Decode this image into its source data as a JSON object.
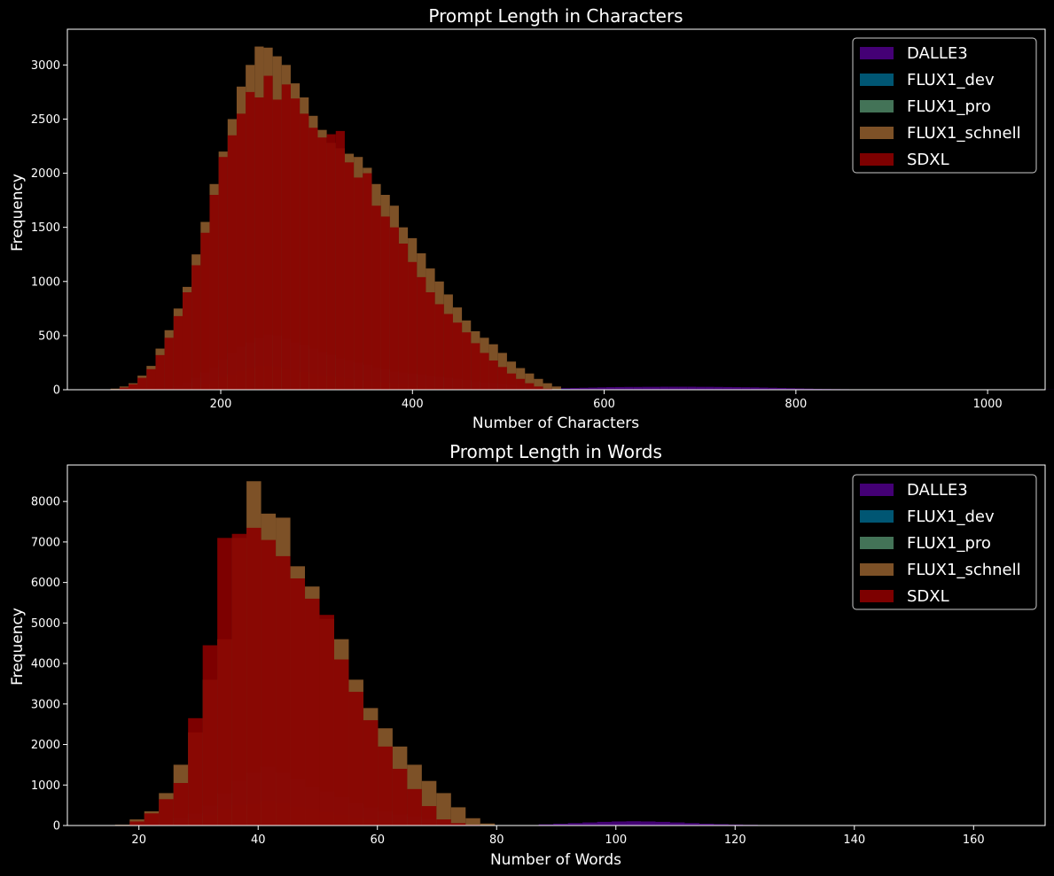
{
  "figure": {
    "background": "#000000"
  },
  "chart_data": [
    {
      "type": "bar",
      "subtype": "histogram",
      "title": "Prompt Length in Characters",
      "xlabel": "Number of Characters",
      "ylabel": "Frequency",
      "xlim": [
        40,
        1060
      ],
      "ylim": [
        0,
        3330
      ],
      "xticks": [
        200,
        400,
        600,
        800,
        1000
      ],
      "yticks": [
        0,
        500,
        1000,
        1500,
        2000,
        2500,
        3000
      ],
      "grid": false,
      "legend_position": "top-right",
      "bin_edges_start": 85,
      "bin_width": 9.4,
      "series": [
        {
          "name": "DALLE3",
          "color": "#4b0082",
          "opacity": 0.9,
          "start_bin": 47,
          "values": [
            8,
            10,
            12,
            14,
            16,
            18,
            20,
            22,
            24,
            25,
            26,
            26,
            27,
            27,
            28,
            28,
            28,
            28,
            27,
            27,
            26,
            25,
            24,
            23,
            22,
            20,
            18,
            16,
            14,
            12,
            10,
            8,
            7,
            6,
            5,
            4,
            3,
            3,
            2,
            2,
            1,
            1,
            1,
            1,
            1,
            1,
            1,
            1,
            1,
            1,
            1,
            1,
            1,
            1,
            1,
            1,
            1,
            1,
            1,
            1,
            1,
            1,
            1,
            1,
            1,
            1,
            1,
            1,
            1,
            1,
            1,
            1,
            1,
            1,
            1,
            1,
            1,
            1,
            1,
            1
          ]
        },
        {
          "name": "FLUX1_dev",
          "color": "#005f80",
          "opacity": 0.9,
          "start_bin": 4,
          "values": [
            5,
            10,
            20,
            40,
            70,
            110,
            160,
            210,
            280,
            340,
            400,
            440,
            480,
            510,
            500,
            470,
            440,
            410,
            380,
            350,
            320,
            290,
            270,
            250,
            230,
            210,
            190,
            170,
            160,
            150,
            140,
            130,
            120,
            110,
            100,
            90,
            80,
            70,
            60,
            50,
            42,
            34,
            26,
            20,
            14,
            10,
            6,
            4
          ]
        },
        {
          "name": "FLUX1_pro",
          "color": "#4a8060",
          "opacity": 0.9,
          "start_bin": 6,
          "values": [
            4,
            8,
            16,
            30,
            50,
            80,
            110,
            140,
            170,
            200,
            215,
            220,
            210,
            190,
            175,
            160,
            145,
            130,
            120,
            110,
            100,
            90,
            80,
            72,
            64,
            56,
            48,
            40,
            32,
            25,
            18,
            12,
            8,
            5,
            3
          ]
        },
        {
          "name": "FLUX1_schnell",
          "color": "#8b5a2b",
          "opacity": 0.9,
          "start_bin": 0,
          "values": [
            10,
            30,
            60,
            130,
            220,
            380,
            550,
            750,
            950,
            1250,
            1550,
            1900,
            2200,
            2500,
            2800,
            3000,
            3170,
            3160,
            3080,
            3000,
            2830,
            2700,
            2530,
            2400,
            2280,
            2230,
            2180,
            2150,
            2050,
            1900,
            1800,
            1700,
            1500,
            1400,
            1260,
            1120,
            1000,
            880,
            760,
            640,
            540,
            480,
            420,
            340,
            260,
            200,
            150,
            100,
            60,
            30
          ]
        },
        {
          "name": "SDXL",
          "color": "#8b0000",
          "opacity": 0.9,
          "start_bin": 0,
          "values": [
            5,
            20,
            50,
            110,
            190,
            320,
            480,
            680,
            900,
            1150,
            1450,
            1800,
            2150,
            2350,
            2550,
            2750,
            2700,
            2900,
            2680,
            2820,
            2690,
            2550,
            2420,
            2330,
            2360,
            2390,
            2100,
            1960,
            2000,
            1700,
            1600,
            1500,
            1350,
            1180,
            1040,
            900,
            790,
            700,
            620,
            530,
            430,
            340,
            270,
            210,
            150,
            100,
            60,
            30,
            10
          ]
        }
      ]
    },
    {
      "type": "bar",
      "subtype": "histogram",
      "title": "Prompt Length in Words",
      "xlabel": "Number of Words",
      "ylabel": "Frequency",
      "xlim": [
        8,
        172
      ],
      "ylim": [
        0,
        8900
      ],
      "xticks": [
        20,
        40,
        60,
        80,
        100,
        120,
        140,
        160
      ],
      "yticks": [
        0,
        1000,
        2000,
        3000,
        4000,
        5000,
        6000,
        7000,
        8000
      ],
      "grid": false,
      "legend_position": "top-right",
      "bin_edges_start": 16,
      "bin_width": 2.45,
      "series": [
        {
          "name": "DALLE3",
          "color": "#4b0082",
          "opacity": 0.9,
          "start_bin": 29,
          "values": [
            30,
            45,
            60,
            75,
            90,
            100,
            105,
            100,
            90,
            75,
            60,
            45,
            35,
            25,
            18,
            12,
            8,
            5,
            3,
            2,
            1,
            1,
            1,
            1,
            1,
            1,
            1,
            1,
            1,
            1,
            1,
            1,
            1,
            1,
            1,
            1,
            1,
            1,
            1,
            1,
            1,
            1,
            1,
            1,
            1,
            1,
            1,
            1,
            1,
            1,
            1,
            1,
            1,
            1,
            1,
            1,
            1,
            1,
            1,
            1
          ]
        },
        {
          "name": "FLUX1_dev",
          "color": "#005f80",
          "opacity": 0.9,
          "start_bin": 2,
          "values": [
            20,
            80,
            180,
            300,
            500,
            800,
            1100,
            1300,
            1450,
            1300,
            1150,
            950,
            850,
            700,
            550,
            450,
            350,
            280,
            220,
            160,
            110,
            70,
            40,
            20,
            10
          ]
        },
        {
          "name": "FLUX1_pro",
          "color": "#4a8060",
          "opacity": 0.9,
          "start_bin": 3,
          "values": [
            30,
            80,
            150,
            250,
            400,
            500,
            520,
            600,
            550,
            450,
            400,
            330,
            260,
            200,
            150,
            100,
            70,
            40,
            20,
            10
          ]
        },
        {
          "name": "FLUX1_schnell",
          "color": "#8b5a2b",
          "opacity": 0.9,
          "start_bin": 0,
          "values": [
            20,
            150,
            350,
            800,
            1500,
            2300,
            3600,
            4600,
            7100,
            8500,
            7700,
            7600,
            6400,
            5900,
            5100,
            4600,
            3600,
            2900,
            2400,
            1950,
            1500,
            1100,
            800,
            450,
            180,
            50
          ]
        },
        {
          "name": "SDXL",
          "color": "#8b0000",
          "opacity": 0.9,
          "start_bin": 0,
          "values": [
            10,
            100,
            300,
            650,
            1050,
            2650,
            4450,
            7100,
            7200,
            7350,
            7050,
            6650,
            6100,
            5600,
            5200,
            4100,
            3300,
            2600,
            1950,
            1400,
            900,
            480,
            150,
            60,
            20
          ]
        }
      ]
    }
  ]
}
